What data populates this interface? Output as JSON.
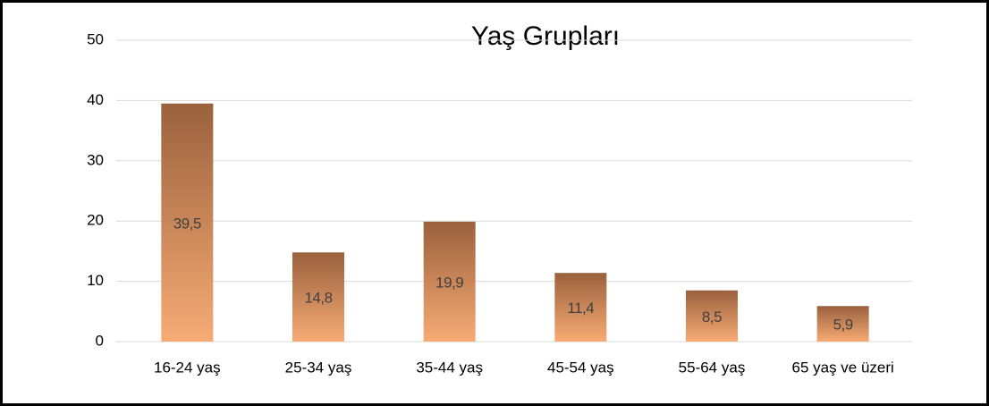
{
  "chart_data": {
    "type": "bar",
    "title": "Yaş Grupları",
    "categories": [
      "16-24 yaş",
      "25-34 yaş",
      "35-44 yaş",
      "45-54 yaş",
      "55-64 yaş",
      "65 yaş ve üzeri"
    ],
    "values": [
      39.5,
      14.8,
      19.9,
      11.4,
      8.5,
      5.9
    ],
    "value_labels": [
      "39,5",
      "14,8",
      "19,9",
      "11,4",
      "8,5",
      "5,9"
    ],
    "gradient": [
      "#9a613d",
      "#f7ab74"
    ],
    "ylim": [
      0,
      50
    ],
    "yticks": [
      0,
      10,
      20,
      30,
      40,
      50
    ],
    "grid": true
  }
}
